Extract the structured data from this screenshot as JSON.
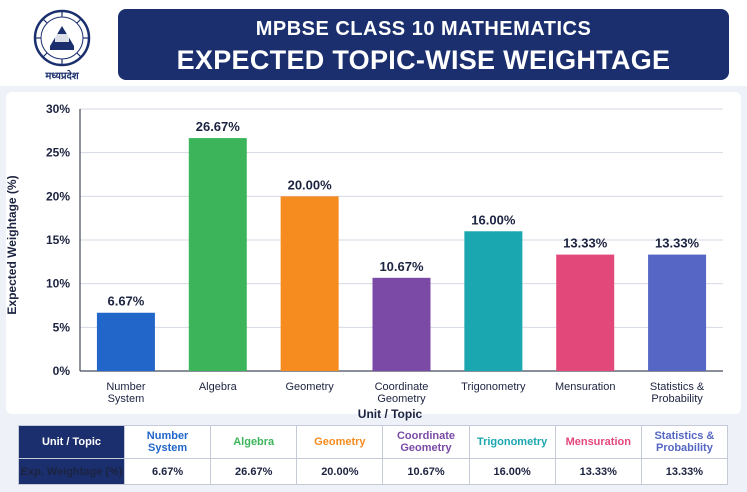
{
  "header": {
    "title_line1": "MPBSE CLASS 10 MATHEMATICS",
    "title_line2": "EXPECTED TOPIC-WISE WEIGHTAGE",
    "logo_text": "मध्यप्रदेश"
  },
  "colors": {
    "header_bg": "#1b2f6e",
    "bars": [
      "#2266c9",
      "#3cb55a",
      "#f68b1f",
      "#7a4aa6",
      "#1aa7b0",
      "#e3487a",
      "#5566c4"
    ]
  },
  "chart_data": {
    "type": "bar",
    "categories": [
      "Number System",
      "Algebra",
      "Geometry",
      "Coordinate Geometry",
      "Trigonometry",
      "Mensuration",
      "Statistics & Probability"
    ],
    "category_lines": [
      [
        "Number",
        "System"
      ],
      [
        "Algebra"
      ],
      [
        "Geometry"
      ],
      [
        "Coordinate",
        "Geometry"
      ],
      [
        "Trigonometry"
      ],
      [
        "Mensuration"
      ],
      [
        "Statistics &",
        "Probability"
      ]
    ],
    "values": [
      6.67,
      26.67,
      20.0,
      10.67,
      16.0,
      13.33,
      13.33
    ],
    "value_labels": [
      "6.67%",
      "26.67%",
      "20.00%",
      "10.67%",
      "16.00%",
      "13.33%",
      "13.33%"
    ],
    "xlabel": "Unit / Topic",
    "ylabel": "Expected Weightage (%)",
    "ylim": [
      0,
      30
    ],
    "yticks": [
      0,
      5,
      10,
      15,
      20,
      25,
      30
    ],
    "ytick_labels": [
      "0%",
      "5%",
      "10%",
      "15%",
      "20%",
      "25%",
      "30%"
    ],
    "grid": true,
    "legend": "none"
  },
  "table": {
    "header_label": "Unit / Topic",
    "value_label": "Exp. Weightage (%)",
    "topics": [
      {
        "name_lines": [
          "Number",
          "System"
        ],
        "value": "6.67%"
      },
      {
        "name_lines": [
          "Algebra"
        ],
        "value": "26.67%"
      },
      {
        "name_lines": [
          "Geometry"
        ],
        "value": "20.00%"
      },
      {
        "name_lines": [
          "Coordinate",
          "Geometry"
        ],
        "value": "10.67%"
      },
      {
        "name_lines": [
          "Trigonometry"
        ],
        "value": "16.00%"
      },
      {
        "name_lines": [
          "Mensuration"
        ],
        "value": "13.33%"
      },
      {
        "name_lines": [
          "Statistics &",
          "Probability"
        ],
        "value": "13.33%"
      }
    ]
  }
}
